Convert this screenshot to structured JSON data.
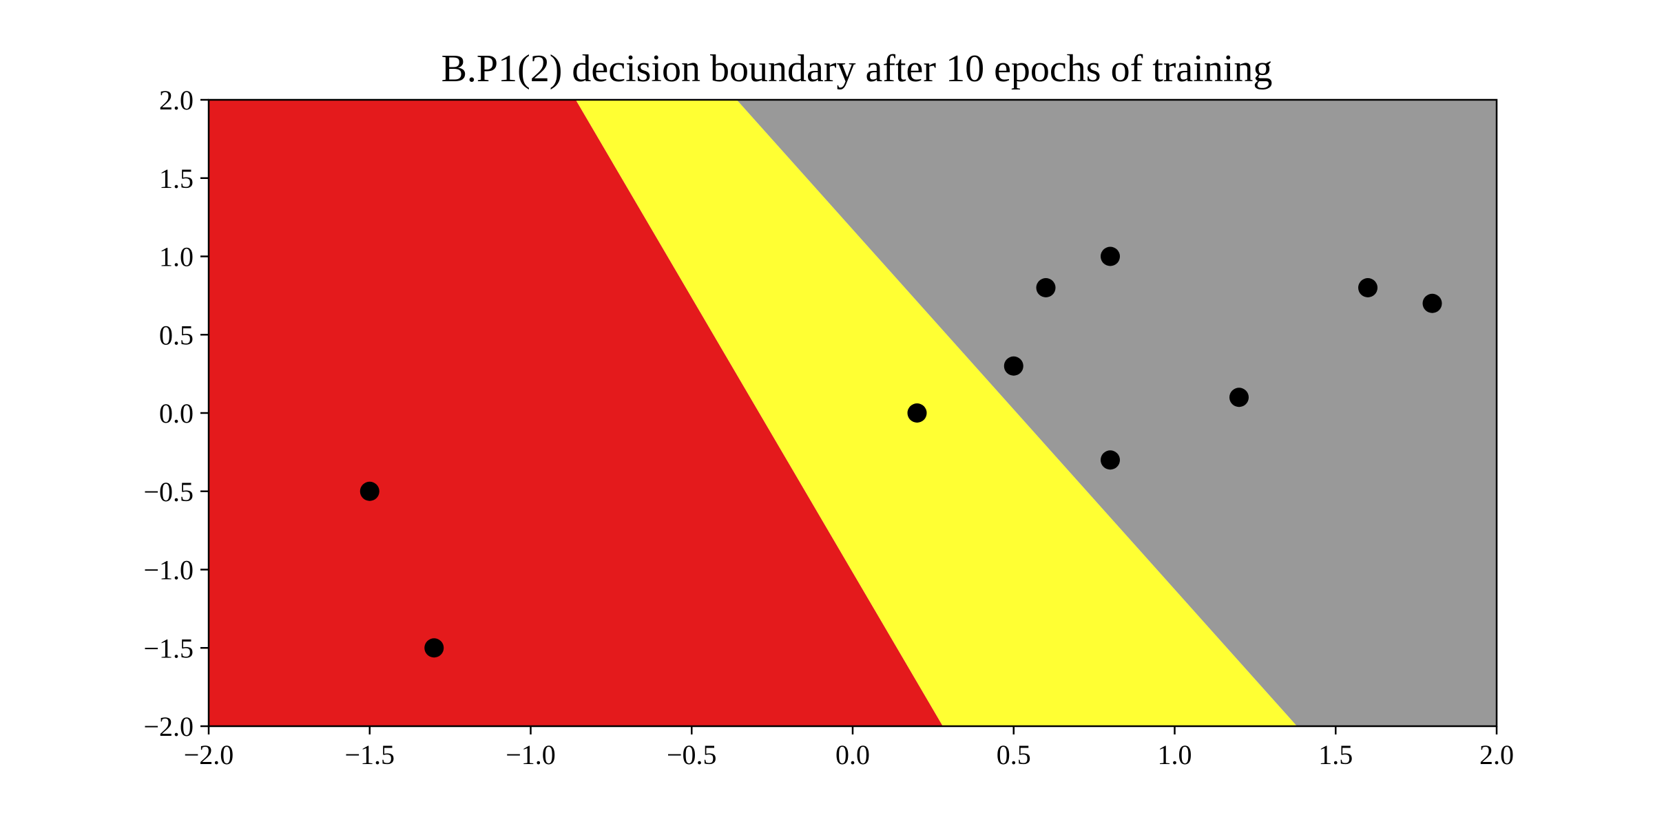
{
  "chart_data": {
    "type": "scatter",
    "title": "B.P1(2) decision boundary after 10 epochs of training",
    "xlabel": "",
    "ylabel": "",
    "xlim": [
      -2.0,
      2.0
    ],
    "ylim": [
      -2.0,
      2.0
    ],
    "grid": false,
    "x_ticks": [
      "−2.0",
      "−1.5",
      "−1.0",
      "−0.5",
      "0.0",
      "0.5",
      "1.0",
      "1.5",
      "2.0"
    ],
    "y_ticks": [
      "−2.0",
      "−1.5",
      "−1.0",
      "−0.5",
      "0.0",
      "0.5",
      "1.0",
      "1.5",
      "2.0"
    ],
    "x_tick_values": [
      -2.0,
      -1.5,
      -1.0,
      -0.5,
      0.0,
      0.5,
      1.0,
      1.5,
      2.0
    ],
    "y_tick_values": [
      -2.0,
      -1.5,
      -1.0,
      -0.5,
      0.0,
      0.5,
      1.0,
      1.5,
      2.0
    ],
    "regions": [
      {
        "color": "#e41a1c",
        "polygon": [
          [
            -2.0,
            2.0
          ],
          [
            -0.86,
            2.0
          ],
          [
            0.28,
            -2.0
          ],
          [
            -2.0,
            -2.0
          ]
        ]
      },
      {
        "color": "#ffff33",
        "polygon": [
          [
            -0.86,
            2.0
          ],
          [
            -0.36,
            2.0
          ],
          [
            1.38,
            -2.0
          ],
          [
            0.28,
            -2.0
          ]
        ]
      },
      {
        "color": "#999999",
        "polygon": [
          [
            -0.36,
            2.0
          ],
          [
            2.0,
            2.0
          ],
          [
            2.0,
            -2.0
          ],
          [
            1.38,
            -2.0
          ]
        ]
      }
    ],
    "points": [
      {
        "x": -1.5,
        "y": -0.5
      },
      {
        "x": -1.3,
        "y": -1.5
      },
      {
        "x": 0.2,
        "y": 0.0
      },
      {
        "x": 0.5,
        "y": 0.3
      },
      {
        "x": 0.6,
        "y": 0.8
      },
      {
        "x": 0.8,
        "y": 1.0
      },
      {
        "x": 0.8,
        "y": -0.3
      },
      {
        "x": 1.2,
        "y": 0.1
      },
      {
        "x": 1.6,
        "y": 0.8
      },
      {
        "x": 1.8,
        "y": 0.7
      }
    ],
    "point_color": "#000000"
  }
}
